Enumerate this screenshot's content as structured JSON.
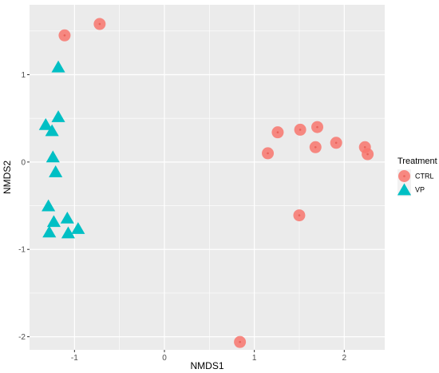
{
  "chart_data": {
    "type": "scatter",
    "xlabel": "NMDS1",
    "ylabel": "NMDS2",
    "xlim": [
      -1.5,
      2.45
    ],
    "ylim": [
      -2.15,
      1.8
    ],
    "x_ticks": [
      -1,
      0,
      1,
      2
    ],
    "y_ticks": [
      -2,
      -1,
      0,
      1
    ],
    "grid": true,
    "legend_title": "Treatment",
    "legend_position": "right",
    "series": [
      {
        "name": "CTRL",
        "shape": "circle",
        "color": "#F8766D",
        "points": [
          {
            "x": -1.11,
            "y": 1.45
          },
          {
            "x": -0.72,
            "y": 1.58
          },
          {
            "x": 1.15,
            "y": 0.1
          },
          {
            "x": 1.26,
            "y": 0.34
          },
          {
            "x": 1.51,
            "y": 0.37
          },
          {
            "x": 1.7,
            "y": 0.4
          },
          {
            "x": 1.68,
            "y": 0.17
          },
          {
            "x": 1.91,
            "y": 0.22
          },
          {
            "x": 2.23,
            "y": 0.17
          },
          {
            "x": 2.26,
            "y": 0.09
          },
          {
            "x": 1.5,
            "y": -0.61
          },
          {
            "x": 0.84,
            "y": -2.06
          }
        ]
      },
      {
        "name": "VP",
        "shape": "triangle",
        "color": "#00BFC4",
        "points": [
          {
            "x": -1.18,
            "y": 1.08
          },
          {
            "x": -1.18,
            "y": 0.51
          },
          {
            "x": -1.32,
            "y": 0.42
          },
          {
            "x": -1.25,
            "y": 0.35
          },
          {
            "x": -1.24,
            "y": 0.05
          },
          {
            "x": -1.21,
            "y": -0.12
          },
          {
            "x": -1.29,
            "y": -0.51
          },
          {
            "x": -1.23,
            "y": -0.69
          },
          {
            "x": -1.08,
            "y": -0.65
          },
          {
            "x": -1.28,
            "y": -0.81
          },
          {
            "x": -1.07,
            "y": -0.82
          },
          {
            "x": -0.96,
            "y": -0.77
          }
        ]
      }
    ]
  }
}
